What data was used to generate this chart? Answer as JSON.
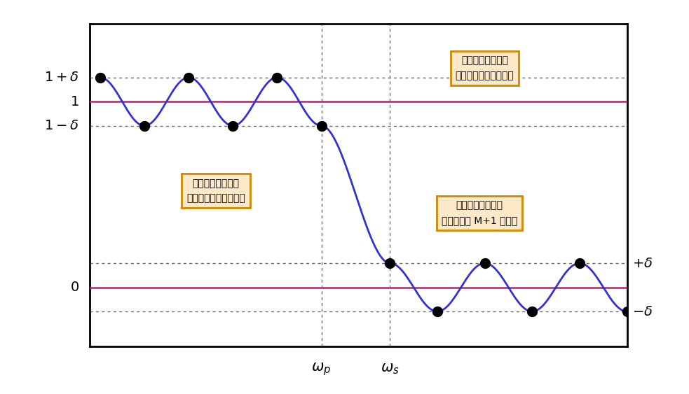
{
  "bg_color": "#ffffff",
  "curve_color": "#3333cc",
  "ref_line_color": "#993366",
  "dot_color": "#000000",
  "dot_size": 100,
  "grid_color": "#444444",
  "box_fill": "#fde8c8",
  "box_edge": "#cc8800",
  "delta": 0.13,
  "wp": 0.42,
  "ws": 0.55,
  "ann_top_right_line1": "誤差関数の極値の",
  "ann_top_right_line2": "絶対値がすべて等しい",
  "ann_bot_left_line1": "誤差関数の極値の",
  "ann_bot_left_line2": "符号が正負を繰り返す",
  "ann_bot_right_line1": "誤差関数の符号が",
  "ann_bot_right_line2": "少なくとも M+1 回変化",
  "n_pass_cycles": 2.5,
  "n_stop_cycles": 2.5
}
